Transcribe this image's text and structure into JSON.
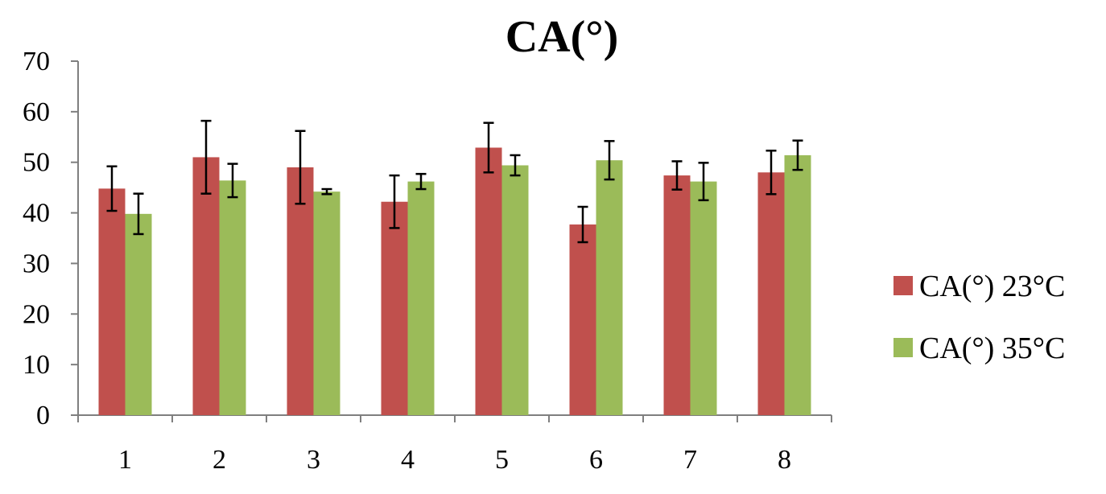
{
  "chart_data": {
    "type": "bar",
    "title": "CA(°)",
    "xlabel": "",
    "ylabel": "",
    "ylim": [
      0,
      70
    ],
    "yticks": [
      0,
      10,
      20,
      30,
      40,
      50,
      60,
      70
    ],
    "categories": [
      "1",
      "2",
      "3",
      "4",
      "5",
      "6",
      "7",
      "8"
    ],
    "series": [
      {
        "name": "CA(°) 23°C",
        "color": "#c0504d",
        "values": [
          44.8,
          51.0,
          49.0,
          42.2,
          52.9,
          37.7,
          47.4,
          48.0
        ],
        "errors": [
          4.4,
          7.2,
          7.2,
          5.2,
          4.9,
          3.5,
          2.8,
          4.3
        ]
      },
      {
        "name": "CA(°) 35°C",
        "color": "#9bbb59",
        "values": [
          39.8,
          46.4,
          44.2,
          46.2,
          49.4,
          50.4,
          46.2,
          51.4
        ],
        "errors": [
          4.0,
          3.3,
          0.5,
          1.5,
          2.0,
          3.8,
          3.7,
          2.9
        ]
      }
    ],
    "legend_position": "right",
    "grid": false
  }
}
